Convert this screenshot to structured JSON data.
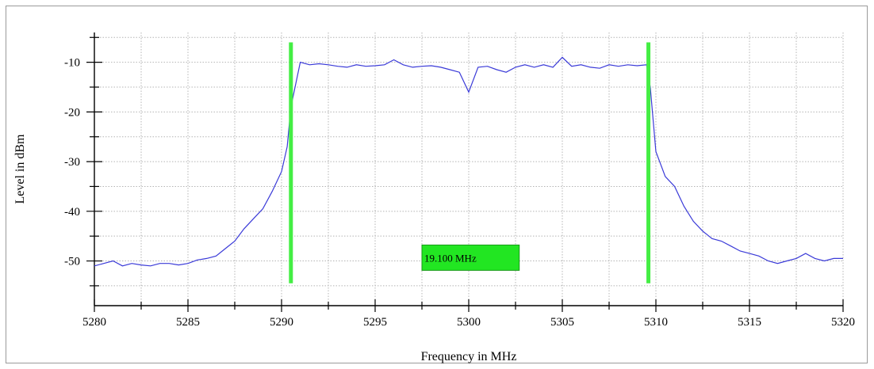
{
  "chart_data": {
    "type": "line",
    "title": "",
    "xlabel": "Frequency in MHz",
    "ylabel": "Level in dBm",
    "xlim": [
      5280,
      5320
    ],
    "ylim": [
      -59,
      -4
    ],
    "x_ticks": [
      5280,
      5285,
      5290,
      5295,
      5300,
      5305,
      5310,
      5315,
      5320
    ],
    "y_ticks": [
      -10,
      -20,
      -30,
      -40,
      -50
    ],
    "grid": true,
    "series": [
      {
        "color": "#3a3ad8",
        "x": [
          5280,
          5280.5,
          5281,
          5281.5,
          5282,
          5282.5,
          5283,
          5283.5,
          5284,
          5284.5,
          5285,
          5285.5,
          5286,
          5286.5,
          5287,
          5287.5,
          5288,
          5288.5,
          5289,
          5289.5,
          5290,
          5290.3,
          5290.5,
          5291,
          5291.5,
          5292,
          5292.5,
          5293,
          5293.5,
          5294,
          5294.5,
          5295,
          5295.5,
          5296,
          5296.5,
          5297,
          5297.5,
          5298,
          5298.5,
          5299,
          5299.5,
          5300,
          5300.5,
          5301,
          5301.5,
          5302,
          5302.5,
          5303,
          5303.5,
          5304,
          5304.5,
          5305,
          5305.5,
          5306,
          5306.5,
          5307,
          5307.5,
          5308,
          5308.5,
          5309,
          5309.5,
          5309.7,
          5310,
          5310.5,
          5311,
          5311.5,
          5312,
          5312.5,
          5313,
          5313.5,
          5314,
          5314.5,
          5315,
          5315.5,
          5316,
          5316.5,
          5317,
          5317.5,
          5318,
          5318.5,
          5319,
          5319.5,
          5320
        ],
        "y": [
          -51,
          -50.5,
          -50,
          -51,
          -50.5,
          -50.8,
          -51,
          -50.5,
          -50.5,
          -50.8,
          -50.5,
          -49.8,
          -49.5,
          -49,
          -47.5,
          -46,
          -43.5,
          -41.5,
          -39.5,
          -36,
          -32,
          -27,
          -19,
          -10,
          -10.5,
          -10.3,
          -10.5,
          -10.8,
          -11,
          -10.5,
          -10.8,
          -10.7,
          -10.5,
          -9.5,
          -10.5,
          -11,
          -10.8,
          -10.7,
          -11,
          -11.5,
          -12,
          -16,
          -11,
          -10.8,
          -11.5,
          -12,
          -11,
          -10.5,
          -11,
          -10.5,
          -11,
          -9,
          -10.8,
          -10.5,
          -11,
          -11.2,
          -10.5,
          -10.8,
          -10.5,
          -10.7,
          -10.5,
          -15,
          -28,
          -33,
          -35,
          -39,
          -42,
          -44,
          -45.5,
          -46,
          -47,
          -48,
          -48.5,
          -49,
          -50,
          -50.5,
          -50,
          -49.5,
          -48.5,
          -49.5,
          -50,
          -49.5,
          -49.5
        ]
      }
    ],
    "markers": {
      "color": "#44ee44",
      "x": [
        5290.5,
        5309.6
      ],
      "y_top": -6,
      "y_bottom": -54.5
    },
    "bandwidth_label": {
      "text": "19.100 MHz",
      "x_left": 5297.5,
      "x_right": 5302.7,
      "y": -49.5
    }
  }
}
